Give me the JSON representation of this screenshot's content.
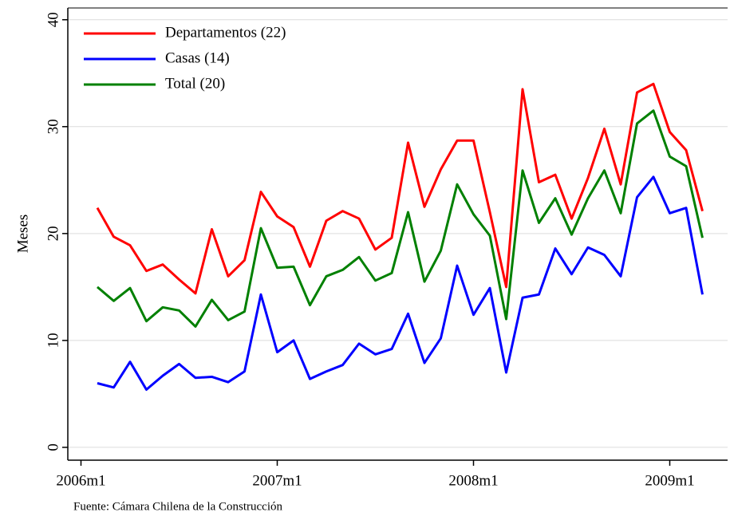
{
  "chart_data": {
    "type": "line",
    "y_label": "Meses",
    "note": "Fuente: Cámara Chilena de la Construcción",
    "x": [
      "2006m2",
      "2006m3",
      "2006m4",
      "2006m5",
      "2006m6",
      "2006m7",
      "2006m8",
      "2006m9",
      "2006m10",
      "2006m11",
      "2006m12",
      "2007m1",
      "2007m2",
      "2007m3",
      "2007m4",
      "2007m5",
      "2007m6",
      "2007m7",
      "2007m8",
      "2007m9",
      "2007m10",
      "2007m11",
      "2007m12",
      "2008m1",
      "2008m2",
      "2008m3",
      "2008m4",
      "2008m5",
      "2008m6",
      "2008m7",
      "2008m8",
      "2008m9",
      "2008m10",
      "2008m11",
      "2008m12",
      "2009m1",
      "2009m2",
      "2009m3"
    ],
    "series": [
      {
        "name": "Departamentos (22)",
        "color": "#ff0000",
        "values": [
          22.4,
          19.7,
          18.9,
          16.5,
          17.1,
          15.7,
          14.4,
          20.4,
          16.0,
          17.5,
          23.9,
          21.6,
          20.6,
          16.9,
          21.2,
          22.1,
          21.4,
          18.5,
          19.6,
          28.5,
          22.5,
          26.0,
          28.7,
          28.7,
          22.0,
          15.0,
          33.5,
          24.8,
          25.5,
          21.4,
          25.2,
          29.8,
          24.6,
          33.2,
          34.0,
          29.5,
          27.8,
          22.1
        ]
      },
      {
        "name": "Casas (14)",
        "color": "#0000ff",
        "values": [
          6.0,
          5.6,
          8.0,
          5.4,
          6.7,
          7.8,
          6.5,
          6.6,
          6.1,
          7.1,
          14.3,
          8.9,
          10.0,
          6.4,
          7.1,
          7.7,
          9.7,
          8.7,
          9.2,
          12.5,
          7.9,
          10.2,
          17.0,
          12.4,
          14.9,
          7.0,
          14.0,
          14.3,
          18.6,
          16.2,
          18.7,
          18.0,
          16.0,
          23.4,
          25.3,
          21.9,
          22.4,
          14.3
        ]
      },
      {
        "name": "Total (20)",
        "color": "#008000",
        "values": [
          15.0,
          13.7,
          14.9,
          11.8,
          13.1,
          12.8,
          11.3,
          13.8,
          11.9,
          12.7,
          20.5,
          16.8,
          16.9,
          13.3,
          16.0,
          16.6,
          17.8,
          15.6,
          16.3,
          22.0,
          15.5,
          18.4,
          24.6,
          21.8,
          19.8,
          12.0,
          25.9,
          21.0,
          23.3,
          19.9,
          23.3,
          25.9,
          21.9,
          30.3,
          31.5,
          27.2,
          26.3,
          19.6
        ]
      }
    ],
    "xlim": [
      "2005m12",
      "2009m4"
    ],
    "xticks": [
      "2006m1",
      "2007m1",
      "2008m1",
      "2009m1"
    ],
    "ylim": [
      -1.2,
      41.1
    ],
    "yticks": [
      0,
      10,
      20,
      30,
      40
    ],
    "grid": true,
    "legend": "top-left"
  }
}
